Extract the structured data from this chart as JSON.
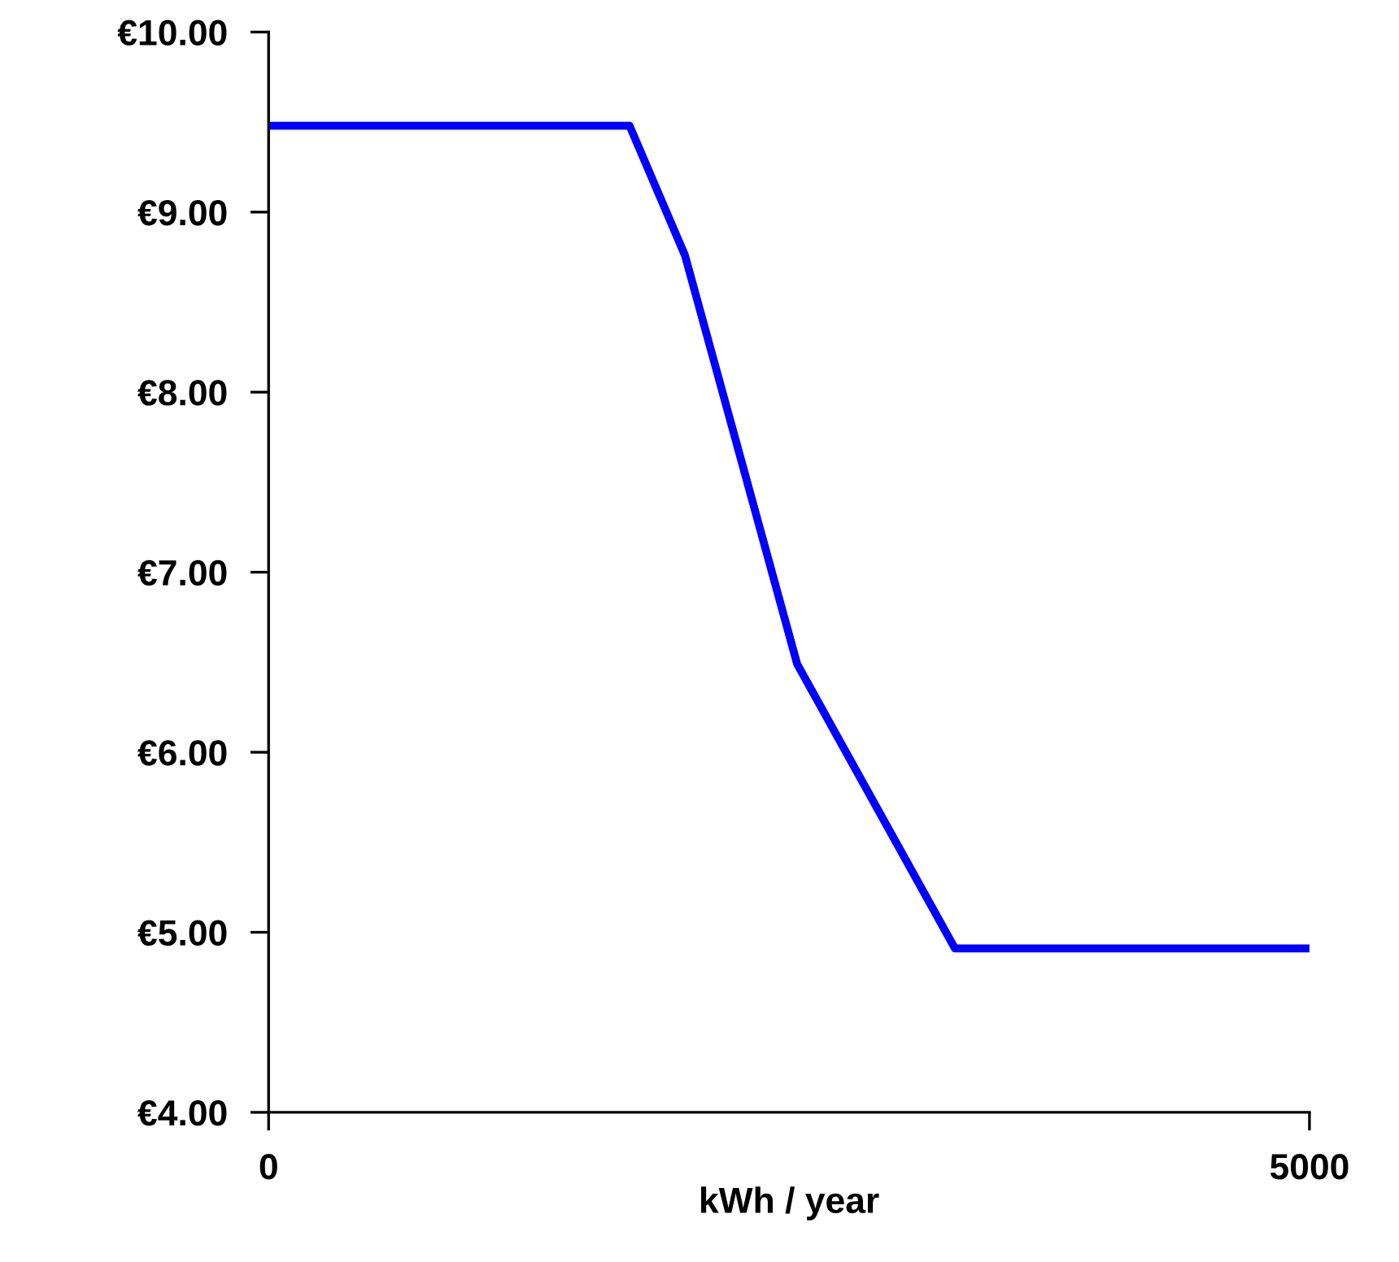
{
  "chart_data": {
    "type": "line",
    "xlabel": "kWh / year",
    "x": [
      0,
      1734,
      2000,
      2539,
      3297,
      5000
    ],
    "series": [
      {
        "color": "#0000ff",
        "values": [
          9.48,
          9.48,
          8.76,
          6.49,
          4.91,
          4.91
        ]
      }
    ],
    "xlim": [
      0,
      5000
    ],
    "xticks": [
      0,
      5000
    ],
    "ylim": [
      4,
      10
    ],
    "yticks": [
      {
        "value": 4,
        "label": "€4.00"
      },
      {
        "value": 5,
        "label": "€5.00"
      },
      {
        "value": 6,
        "label": "€6.00"
      },
      {
        "value": 7,
        "label": "€7.00"
      },
      {
        "value": 8,
        "label": "€8.00"
      },
      {
        "value": 9,
        "label": "€9.00"
      },
      {
        "value": 10,
        "label": "€10.00"
      }
    ],
    "grid": false,
    "marker": "none",
    "line_style": "solid"
  }
}
